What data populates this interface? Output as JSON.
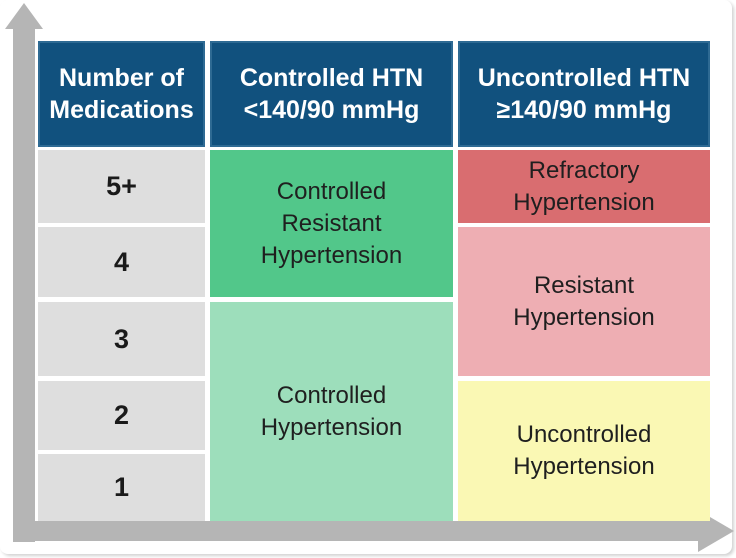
{
  "colors": {
    "header_bg": "#11517E",
    "header_border": "#2E6A93",
    "row_label_bg": "#DEDEDE",
    "dark_green": "#52C78A",
    "light_green": "#9DDEBB",
    "red": "#D96D70",
    "pink": "#EEAEB3",
    "yellow": "#FAF8B4",
    "arrow_gray": "#B5B5B5",
    "text_dark": "#1F1F1F"
  },
  "diagram": {
    "columns": [
      {
        "header_line1": "Number of",
        "header_line2": "Medications"
      },
      {
        "header_line1": "Controlled HTN",
        "header_line2": "<140/90 mmHg"
      },
      {
        "header_line1": "Uncontrolled HTN",
        "header_line2": "≥140/90 mmHg"
      }
    ],
    "row_labels": [
      "5+",
      "4",
      "3",
      "2",
      "1"
    ],
    "zones": [
      {
        "id": "controlled-resistant-hypertension",
        "lines": [
          "Controlled",
          "Resistant",
          "Hypertension"
        ]
      },
      {
        "id": "controlled-hypertension",
        "lines": [
          "Controlled",
          "Hypertension"
        ]
      },
      {
        "id": "refractory-hypertension",
        "lines": [
          "Refractory",
          "Hypertension"
        ]
      },
      {
        "id": "resistant-hypertension",
        "lines": [
          "Resistant",
          "Hypertension"
        ]
      },
      {
        "id": "uncontrolled-hypertension",
        "lines": [
          "Uncontrolled",
          "Hypertension"
        ]
      }
    ]
  },
  "chart_data": {
    "type": "table",
    "title": "",
    "x_axis_categories": [
      "Controlled HTN <140/90 mmHg",
      "Uncontrolled HTN ≥140/90 mmHg"
    ],
    "y_axis_categories": [
      "5+",
      "4",
      "3",
      "2",
      "1"
    ],
    "matrix": [
      [
        "Controlled Resistant Hypertension",
        "Refractory Hypertension"
      ],
      [
        "Controlled Resistant Hypertension",
        "Resistant Hypertension"
      ],
      [
        "Controlled Hypertension",
        "Resistant Hypertension"
      ],
      [
        "Controlled Hypertension",
        "Uncontrolled Hypertension"
      ],
      [
        "Controlled Hypertension",
        "Uncontrolled Hypertension"
      ]
    ]
  }
}
